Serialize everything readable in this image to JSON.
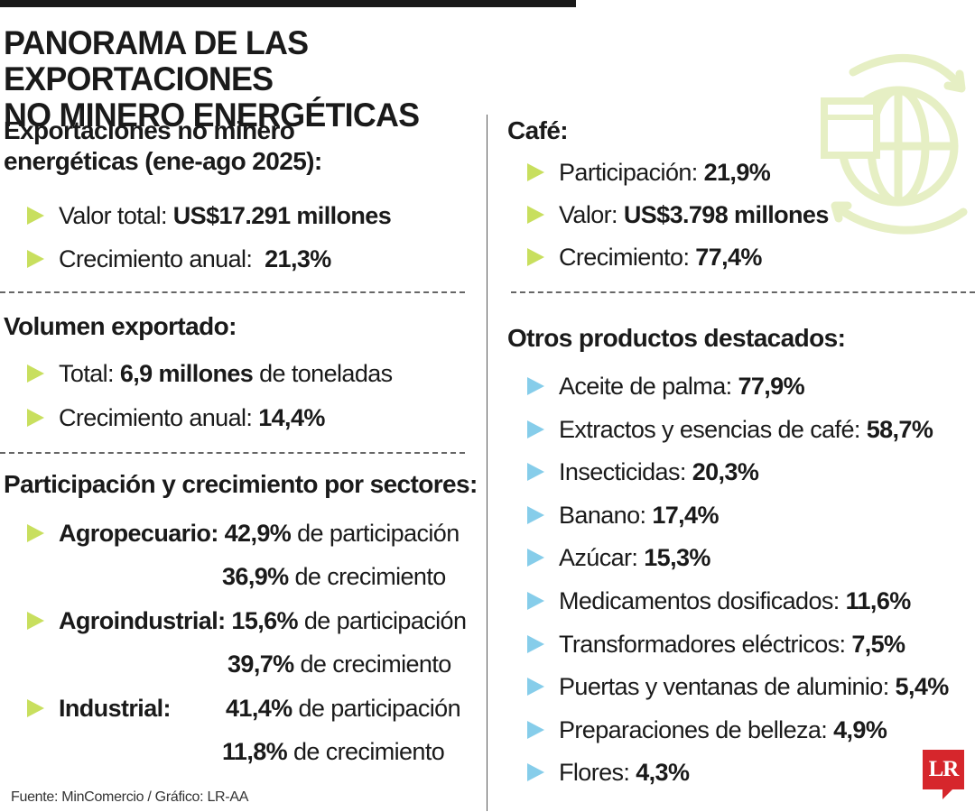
{
  "title_line1": "PANORAMA DE LAS EXPORTACIONES",
  "title_line2": "NO MINERO ENERGÉTICAS",
  "left": {
    "exports": {
      "heading_line1": "Exportaciones no minero",
      "heading_line2": "energéticas (ene-ago 2025):",
      "total_label": "Valor total:",
      "total_value": "US$17.291 millones",
      "growth_label": "Crecimiento anual:",
      "growth_value": "21,3%"
    },
    "volume": {
      "heading": "Volumen exportado:",
      "total_label": "Total:",
      "total_value": "6,9 millones",
      "total_unit": "de toneladas",
      "growth_label": "Crecimiento anual:",
      "growth_value": "14,4%"
    },
    "sectors": {
      "heading": "Participación y crecimiento por sectores:",
      "items": [
        {
          "name": "Agropecuario:",
          "share": "42,9%",
          "share_text": "de participación",
          "growth": "36,9%",
          "growth_text": "de crecimiento"
        },
        {
          "name": "Agroindustrial:",
          "share": "15,6%",
          "share_text": "de participación",
          "growth": "39,7%",
          "growth_text": "de crecimiento"
        },
        {
          "name": "Industrial:",
          "share": "41,4%",
          "share_text": "de participación",
          "growth": "11,8%",
          "growth_text": "de crecimiento"
        }
      ]
    }
  },
  "right": {
    "coffee": {
      "heading": "Café:",
      "share_label": "Participación:",
      "share_value": "21,9%",
      "value_label": "Valor:",
      "value_value": "US$3.798 millones",
      "growth_label": "Crecimiento:",
      "growth_value": "77,4%"
    },
    "others": {
      "heading": "Otros productos destacados:",
      "items": [
        {
          "label": "Aceite de palma:",
          "value": "77,9%"
        },
        {
          "label": "Extractos y esencias de café:",
          "value": "58,7%"
        },
        {
          "label": "Insecticidas:",
          "value": "20,3%"
        },
        {
          "label": "Banano:",
          "value": "17,4%"
        },
        {
          "label": "Azúcar:",
          "value": "15,3%"
        },
        {
          "label": "Medicamentos dosificados:",
          "value": "11,6%"
        },
        {
          "label": "Transformadores eléctricos:",
          "value": "7,5%"
        },
        {
          "label": "Puertas y ventanas de aluminio:",
          "value": "5,4%"
        },
        {
          "label": "Preparaciones de belleza:",
          "value": "4,9%"
        },
        {
          "label": "Flores:",
          "value": "4,3%"
        }
      ]
    }
  },
  "source": "Fuente: MinComercio  / Gráfico: LR-AA",
  "logo_text": "LR",
  "colors": {
    "arrow_green": "#c8df5e",
    "arrow_blue": "#86cdea",
    "logo_red": "#d6262c",
    "globe_icon": "#e6efc4"
  },
  "icons": {
    "decor": "globe-trade-icon",
    "bullet": "triangle-bullet-icon"
  }
}
